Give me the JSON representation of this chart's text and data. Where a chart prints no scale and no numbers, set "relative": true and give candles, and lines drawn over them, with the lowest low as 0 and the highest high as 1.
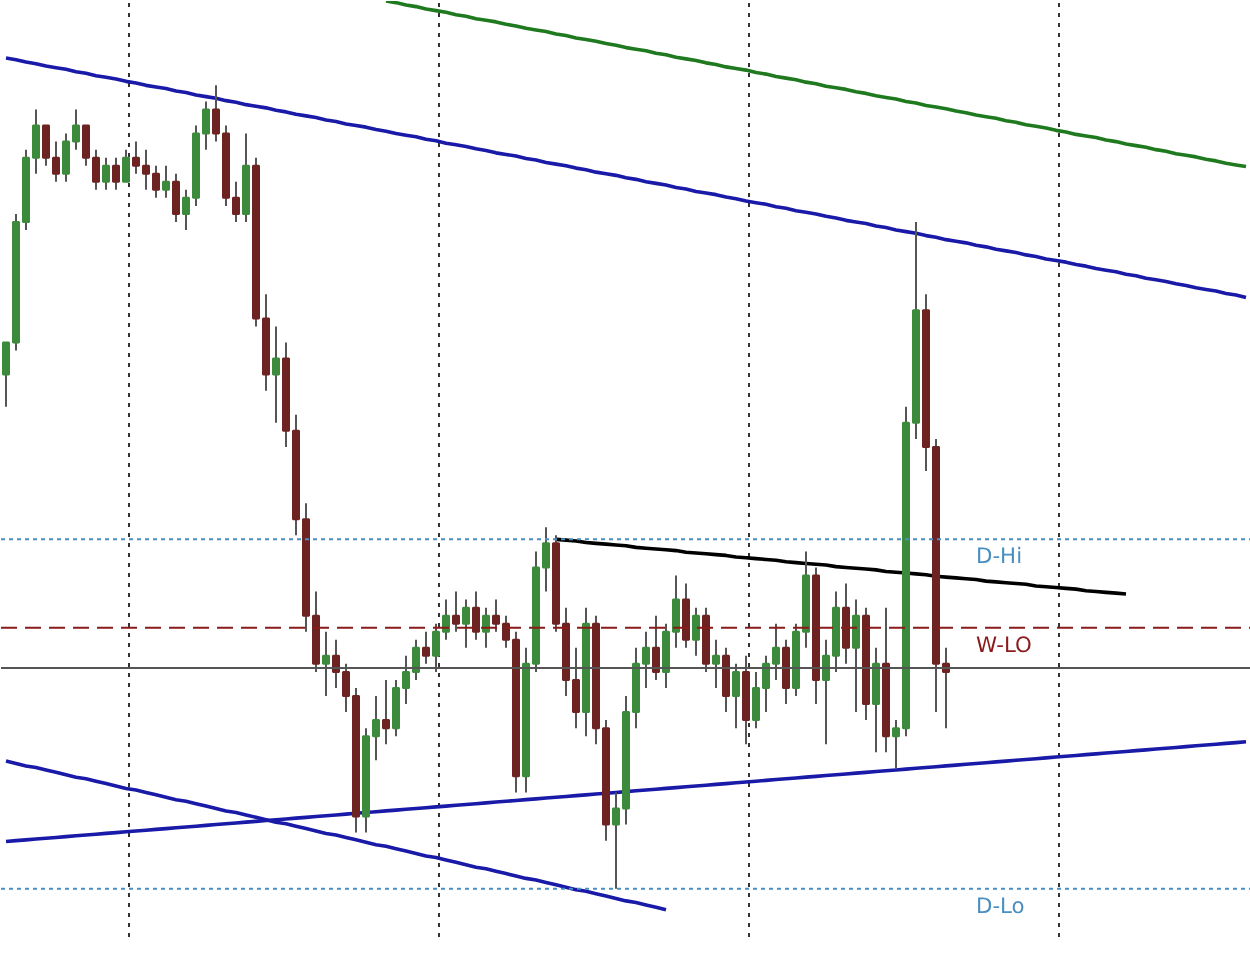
{
  "chart_data": {
    "type": "candlestick",
    "relative": true,
    "tick_labels": false,
    "grid": "x",
    "categories": [
      null,
      null,
      null,
      null,
      null,
      null,
      null,
      null,
      null,
      null,
      null,
      null,
      null,
      null,
      null,
      null,
      null,
      null,
      null,
      null,
      null,
      null,
      null,
      null,
      null,
      null,
      null,
      null,
      null,
      null,
      null,
      null,
      null,
      null,
      null,
      null,
      null,
      null,
      null,
      null,
      null,
      null,
      null,
      null,
      null,
      null,
      null,
      null,
      null,
      null,
      null,
      null,
      null,
      null,
      null,
      null,
      null,
      null,
      null,
      null,
      null,
      null,
      null,
      null,
      null,
      null,
      null,
      null,
      null,
      null,
      null,
      null,
      null,
      null,
      null,
      null,
      null,
      null,
      null,
      null,
      null,
      null,
      null,
      null,
      null,
      null,
      null,
      null,
      null,
      null,
      null,
      null,
      null,
      null,
      null,
      null,
      null,
      null,
      null,
      null,
      null,
      null,
      null,
      null,
      null,
      null,
      null,
      null,
      null,
      null,
      null,
      null,
      null,
      null,
      null,
      null,
      null,
      null,
      null,
      null,
      null,
      null,
      null,
      null,
      null
    ],
    "colors": [
      "#3c8a3c",
      "#3c8a3c",
      "#3c8a3c",
      "#3c8a3c",
      "#6e2323",
      "#6e2323",
      "#3c8a3c",
      "#3c8a3c",
      "#6e2323",
      "#6e2323",
      "#3c8a3c",
      "#6e2323",
      "#3c8a3c",
      "#6e2323",
      "#6e2323",
      "#6e2323",
      "#3c8a3c",
      "#6e2323",
      "#3c8a3c",
      "#3c8a3c",
      "#3c8a3c",
      "#6e2323",
      "#6e2323",
      "#6e2323",
      "#3c8a3c",
      "#6e2323",
      "#6e2323",
      "#3c8a3c",
      "#6e2323",
      "#6e2323",
      "#6e2323",
      "#6e2323",
      "#3c8a3c",
      "#6e2323",
      "#6e2323",
      "#6e2323",
      "#3c8a3c",
      "#3c8a3c",
      "#6e2323",
      "#3c8a3c",
      "#3c8a3c",
      "#3c8a3c",
      "#6e2323",
      "#3c8a3c",
      "#3c8a3c",
      "#6e2323",
      "#3c8a3c",
      "#6e2323",
      "#3c8a3c",
      "#6e2323",
      "#6e2323",
      "#6e2323",
      "#3c8a3c",
      "#3c8a3c",
      "#3c8a3c",
      "#6e2323",
      "#6e2323",
      "#6e2323",
      "#3c8a3c",
      "#6e2323",
      "#6e2323",
      "#3c8a3c",
      "#3c8a3c",
      "#3c8a3c",
      "#3c8a3c",
      "#6e2323",
      "#3c8a3c",
      "#3c8a3c",
      "#6e2323",
      "#3c8a3c",
      "#6e2323",
      "#3c8a3c",
      "#6e2323",
      "#3c8a3c",
      "#6e2323",
      "#3c8a3c",
      "#3c8a3c",
      "#3c8a3c",
      "#6e2323",
      "#3c8a3c",
      "#3c8a3c",
      "#6e2323",
      "#3c8a3c",
      "#3c8a3c",
      "#6e2323",
      "#3c8a3c",
      "#6e2323",
      "#3c8a3c",
      "#6e2323",
      "#3c8a3c",
      "#3c8a3c",
      "#3c8a3c",
      "#6e2323",
      "#6e2323",
      "#6e2323",
      null,
      null,
      null,
      null,
      null,
      null,
      null,
      null,
      null,
      null,
      null,
      null,
      null,
      null,
      null,
      null,
      null,
      null,
      null,
      null,
      null,
      null,
      null,
      null,
      null,
      null,
      null,
      null,
      null,
      null
    ],
    "ohlc": [
      [
        0.64,
        0.68,
        0.6,
        0.68
      ],
      [
        0.68,
        0.84,
        0.67,
        0.83
      ],
      [
        0.83,
        0.92,
        0.82,
        0.91
      ],
      [
        0.91,
        0.97,
        0.89,
        0.95
      ],
      [
        0.95,
        0.95,
        0.9,
        0.91
      ],
      [
        0.91,
        0.93,
        0.88,
        0.89
      ],
      [
        0.89,
        0.94,
        0.88,
        0.93
      ],
      [
        0.93,
        0.97,
        0.92,
        0.95
      ],
      [
        0.95,
        0.95,
        0.9,
        0.91
      ],
      [
        0.91,
        0.92,
        0.87,
        0.88
      ],
      [
        0.88,
        0.91,
        0.87,
        0.9
      ],
      [
        0.9,
        0.91,
        0.87,
        0.88
      ],
      [
        0.88,
        0.92,
        0.88,
        0.91
      ],
      [
        0.91,
        0.93,
        0.89,
        0.9
      ],
      [
        0.9,
        0.92,
        0.87,
        0.89
      ],
      [
        0.89,
        0.9,
        0.86,
        0.87
      ],
      [
        0.87,
        0.9,
        0.86,
        0.88
      ],
      [
        0.88,
        0.89,
        0.83,
        0.84
      ],
      [
        0.84,
        0.87,
        0.82,
        0.86
      ],
      [
        0.86,
        0.95,
        0.85,
        0.94
      ],
      [
        0.94,
        0.98,
        0.92,
        0.97
      ],
      [
        0.97,
        1.0,
        0.93,
        0.94
      ],
      [
        0.94,
        0.95,
        0.85,
        0.86
      ],
      [
        0.86,
        0.88,
        0.83,
        0.84
      ],
      [
        0.84,
        0.94,
        0.83,
        0.9
      ],
      [
        0.9,
        0.91,
        0.7,
        0.71
      ],
      [
        0.71,
        0.74,
        0.62,
        0.64
      ],
      [
        0.64,
        0.7,
        0.58,
        0.66
      ],
      [
        0.66,
        0.68,
        0.55,
        0.57
      ],
      [
        0.57,
        0.59,
        0.44,
        0.46
      ],
      [
        0.46,
        0.48,
        0.32,
        0.34
      ],
      [
        0.34,
        0.37,
        0.27,
        0.28
      ],
      [
        0.28,
        0.32,
        0.24,
        0.29
      ],
      [
        0.29,
        0.31,
        0.25,
        0.27
      ],
      [
        0.27,
        0.28,
        0.22,
        0.24
      ],
      [
        0.24,
        0.25,
        0.07,
        0.09
      ],
      [
        0.09,
        0.2,
        0.07,
        0.19
      ],
      [
        0.19,
        0.24,
        0.16,
        0.21
      ],
      [
        0.21,
        0.26,
        0.18,
        0.2
      ],
      [
        0.2,
        0.26,
        0.19,
        0.25
      ],
      [
        0.25,
        0.29,
        0.23,
        0.27
      ],
      [
        0.27,
        0.31,
        0.26,
        0.3
      ],
      [
        0.3,
        0.32,
        0.28,
        0.29
      ],
      [
        0.29,
        0.33,
        0.27,
        0.32
      ],
      [
        0.32,
        0.36,
        0.31,
        0.34
      ],
      [
        0.34,
        0.37,
        0.32,
        0.33
      ],
      [
        0.33,
        0.36,
        0.3,
        0.35
      ],
      [
        0.35,
        0.37,
        0.31,
        0.32
      ],
      [
        0.32,
        0.35,
        0.3,
        0.34
      ],
      [
        0.34,
        0.36,
        0.32,
        0.33
      ],
      [
        0.33,
        0.34,
        0.3,
        0.31
      ],
      [
        0.31,
        0.32,
        0.12,
        0.14
      ],
      [
        0.14,
        0.3,
        0.12,
        0.28
      ],
      [
        0.28,
        0.42,
        0.27,
        0.4
      ],
      [
        0.4,
        0.45,
        0.37,
        0.43
      ],
      [
        0.43,
        0.44,
        0.32,
        0.33
      ],
      [
        0.33,
        0.35,
        0.24,
        0.26
      ],
      [
        0.26,
        0.3,
        0.2,
        0.22
      ],
      [
        0.22,
        0.35,
        0.19,
        0.33
      ],
      [
        0.33,
        0.34,
        0.18,
        0.2
      ],
      [
        0.2,
        0.21,
        0.06,
        0.08
      ],
      [
        0.08,
        0.12,
        0.0,
        0.1
      ],
      [
        0.1,
        0.24,
        0.08,
        0.22
      ],
      [
        0.22,
        0.3,
        0.2,
        0.28
      ],
      [
        0.28,
        0.32,
        0.25,
        0.3
      ],
      [
        0.3,
        0.34,
        0.26,
        0.27
      ],
      [
        0.27,
        0.33,
        0.25,
        0.32
      ],
      [
        0.32,
        0.39,
        0.3,
        0.36
      ],
      [
        0.36,
        0.38,
        0.3,
        0.31
      ],
      [
        0.31,
        0.35,
        0.29,
        0.34
      ],
      [
        0.34,
        0.35,
        0.27,
        0.28
      ],
      [
        0.28,
        0.31,
        0.25,
        0.29
      ],
      [
        0.29,
        0.3,
        0.22,
        0.24
      ],
      [
        0.24,
        0.28,
        0.2,
        0.27
      ],
      [
        0.27,
        0.29,
        0.18,
        0.21
      ],
      [
        0.21,
        0.27,
        0.2,
        0.25
      ],
      [
        0.25,
        0.29,
        0.22,
        0.28
      ],
      [
        0.28,
        0.33,
        0.26,
        0.3
      ],
      [
        0.3,
        0.31,
        0.23,
        0.25
      ],
      [
        0.25,
        0.33,
        0.24,
        0.32
      ],
      [
        0.32,
        0.42,
        0.3,
        0.39
      ],
      [
        0.39,
        0.4,
        0.23,
        0.26
      ],
      [
        0.26,
        0.31,
        0.18,
        0.29
      ],
      [
        0.29,
        0.37,
        0.27,
        0.35
      ],
      [
        0.35,
        0.38,
        0.28,
        0.3
      ],
      [
        0.3,
        0.36,
        0.22,
        0.34
      ],
      [
        0.34,
        0.35,
        0.21,
        0.23
      ],
      [
        0.23,
        0.3,
        0.17,
        0.28
      ],
      [
        0.28,
        0.35,
        0.17,
        0.19
      ],
      [
        0.19,
        0.21,
        0.15,
        0.2
      ],
      [
        0.2,
        0.6,
        0.19,
        0.58
      ],
      [
        0.58,
        0.83,
        0.56,
        0.72
      ],
      [
        0.72,
        0.74,
        0.52,
        0.55
      ],
      [
        0.55,
        0.56,
        0.22,
        0.28
      ],
      [
        0.28,
        0.3,
        0.2,
        0.27
      ],
      null,
      null,
      null,
      null,
      null,
      null,
      null,
      null,
      null,
      null,
      null,
      null,
      null,
      null,
      null,
      null,
      null,
      null,
      null,
      null,
      null,
      null,
      null,
      null,
      null,
      null,
      null,
      null,
      null,
      null
    ],
    "series": [
      {
        "type": "line",
        "color": "#1a1aa8",
        "values": [
          1.034,
          1.032,
          1.029,
          1.027,
          1.024,
          1.022,
          1.02,
          1.017,
          1.015,
          1.012,
          1.01,
          1.008,
          1.005,
          1.003,
          1.0,
          0.998,
          0.996,
          0.993,
          0.991,
          0.988,
          0.986,
          0.984,
          0.981,
          0.979,
          0.976,
          0.974,
          0.972,
          0.969,
          0.967,
          0.964,
          0.962,
          0.96,
          0.957,
          0.955,
          0.952,
          0.95,
          0.948,
          0.945,
          0.943,
          0.94,
          0.938,
          0.936,
          0.933,
          0.931,
          0.928,
          0.926,
          0.924,
          0.921,
          0.919,
          0.916,
          0.914,
          0.912,
          0.909,
          0.907,
          0.904,
          0.902,
          0.9,
          0.897,
          0.895,
          0.892,
          0.89,
          0.888,
          0.885,
          0.883,
          0.88,
          0.878,
          0.876,
          0.873,
          0.871,
          0.868,
          0.866,
          0.864,
          0.861,
          0.859,
          0.856,
          0.854,
          0.852,
          0.849,
          0.847,
          0.844,
          0.842,
          0.84,
          0.837,
          0.835,
          0.832,
          0.83,
          0.828,
          0.825,
          0.823,
          0.82,
          0.818,
          0.816,
          0.813,
          0.811,
          0.808,
          0.806,
          0.804,
          0.801,
          0.799,
          0.796,
          0.794,
          0.792,
          0.789,
          0.787,
          0.784,
          0.782,
          0.78,
          0.777,
          0.775,
          0.772,
          0.77,
          0.768,
          0.765,
          0.763,
          0.76,
          0.758,
          0.756,
          0.753,
          0.751,
          0.748,
          0.746,
          0.744,
          0.741,
          0.739,
          0.736
        ]
      },
      {
        "type": "line",
        "color": "#1f7a1f",
        "values": [
          null,
          null,
          null,
          null,
          null,
          null,
          null,
          null,
          null,
          null,
          null,
          null,
          null,
          null,
          null,
          null,
          null,
          null,
          null,
          null,
          null,
          null,
          null,
          null,
          null,
          null,
          null,
          null,
          null,
          null,
          null,
          null,
          null,
          null,
          null,
          null,
          null,
          null,
          1.105,
          1.103,
          1.1,
          1.098,
          1.095,
          1.093,
          1.091,
          1.088,
          1.086,
          1.083,
          1.081,
          1.079,
          1.076,
          1.074,
          1.071,
          1.069,
          1.067,
          1.064,
          1.062,
          1.059,
          1.057,
          1.055,
          1.052,
          1.05,
          1.047,
          1.045,
          1.043,
          1.04,
          1.038,
          1.035,
          1.033,
          1.031,
          1.028,
          1.026,
          1.023,
          1.021,
          1.019,
          1.016,
          1.014,
          1.011,
          1.009,
          1.007,
          1.004,
          1.002,
          0.999,
          0.997,
          0.995,
          0.992,
          0.99,
          0.987,
          0.985,
          0.983,
          0.98,
          0.978,
          0.975,
          0.973,
          0.971,
          0.968,
          0.966,
          0.963,
          0.961,
          0.959,
          0.956,
          0.954,
          0.951,
          0.949,
          0.947,
          0.944,
          0.942,
          0.939,
          0.937,
          0.935,
          0.932,
          0.93,
          0.927,
          0.925,
          0.923,
          0.92,
          0.918,
          0.915,
          0.913,
          0.911,
          0.908,
          0.906,
          0.903,
          0.901,
          0.899
        ]
      },
      {
        "type": "line",
        "color": "#000000",
        "values": [
          null,
          null,
          null,
          null,
          null,
          null,
          null,
          null,
          null,
          null,
          null,
          null,
          null,
          null,
          null,
          null,
          null,
          null,
          null,
          null,
          null,
          null,
          null,
          null,
          null,
          null,
          null,
          null,
          null,
          null,
          null,
          null,
          null,
          null,
          null,
          null,
          null,
          null,
          null,
          null,
          null,
          null,
          null,
          null,
          null,
          null,
          null,
          null,
          null,
          null,
          null,
          null,
          null,
          null,
          null,
          0.435,
          0.434,
          0.433,
          0.431,
          0.43,
          0.429,
          0.428,
          0.427,
          0.425,
          0.424,
          0.423,
          0.422,
          0.421,
          0.419,
          0.418,
          0.417,
          0.416,
          0.415,
          0.413,
          0.412,
          0.411,
          0.41,
          0.409,
          0.407,
          0.406,
          0.405,
          0.404,
          0.403,
          0.401,
          0.4,
          0.399,
          0.398,
          0.397,
          0.395,
          0.394,
          0.393,
          0.392,
          0.391,
          0.389,
          0.388,
          0.387,
          0.386,
          0.385,
          0.383,
          0.382,
          0.381,
          0.38,
          0.379,
          0.377,
          0.376,
          0.375,
          0.374,
          0.373,
          0.371,
          0.37,
          0.369,
          0.368,
          0.367,
          null,
          null,
          null,
          null,
          null,
          null,
          null,
          null,
          null,
          null,
          null,
          null
        ]
      },
      {
        "type": "line",
        "color": "#1a1aa8",
        "values": [
          0.059,
          0.06,
          0.061,
          0.062,
          0.063,
          0.064,
          0.065,
          0.066,
          0.067,
          0.068,
          0.069,
          0.07,
          0.071,
          0.072,
          0.073,
          0.074,
          0.075,
          0.076,
          0.077,
          0.078,
          0.079,
          0.08,
          0.081,
          0.082,
          0.083,
          0.084,
          0.085,
          0.086,
          0.087,
          0.088,
          0.089,
          0.09,
          0.091,
          0.092,
          0.093,
          0.094,
          0.095,
          0.096,
          0.097,
          0.098,
          0.099,
          0.1,
          0.101,
          0.102,
          0.103,
          0.104,
          0.105,
          0.106,
          0.107,
          0.108,
          0.109,
          0.11,
          0.111,
          0.112,
          0.113,
          0.114,
          0.115,
          0.116,
          0.117,
          0.118,
          0.119,
          0.12,
          0.121,
          0.122,
          0.123,
          0.124,
          0.125,
          0.126,
          0.127,
          0.128,
          0.129,
          0.13,
          0.131,
          0.132,
          0.133,
          0.134,
          0.135,
          0.136,
          0.137,
          0.138,
          0.139,
          0.14,
          0.141,
          0.142,
          0.143,
          0.144,
          0.145,
          0.146,
          0.147,
          0.148,
          0.149,
          0.15,
          0.151,
          0.152,
          0.153,
          0.154,
          0.155,
          0.156,
          0.157,
          0.158,
          0.159,
          0.16,
          0.161,
          0.162,
          0.163,
          0.164,
          0.165,
          0.166,
          0.167,
          0.168,
          0.169,
          0.17,
          0.171,
          0.172,
          0.173,
          0.174,
          0.175,
          0.176,
          0.177,
          0.178,
          0.179,
          0.18,
          0.181,
          0.182,
          0.183
        ]
      },
      {
        "type": "line",
        "color": "#1a1aa8",
        "values": [
          0.159,
          0.156,
          0.153,
          0.151,
          0.148,
          0.145,
          0.142,
          0.139,
          0.137,
          0.134,
          0.131,
          0.128,
          0.125,
          0.123,
          0.12,
          0.117,
          0.114,
          0.111,
          0.109,
          0.106,
          0.103,
          0.1,
          0.097,
          0.095,
          0.092,
          0.089,
          0.086,
          0.083,
          0.081,
          0.078,
          0.075,
          0.072,
          0.069,
          0.067,
          0.064,
          0.061,
          0.058,
          0.055,
          0.053,
          0.05,
          0.047,
          0.044,
          0.041,
          0.039,
          0.036,
          0.033,
          0.03,
          0.027,
          0.025,
          0.022,
          0.019,
          0.016,
          0.013,
          0.011,
          0.008,
          0.005,
          0.002,
          -0.001,
          -0.003,
          -0.006,
          -0.009,
          -0.012,
          -0.015,
          -0.017,
          -0.02,
          -0.023,
          -0.026,
          null,
          null,
          null,
          null,
          null,
          null,
          null,
          null,
          null,
          null,
          null,
          null,
          null,
          null,
          null,
          null,
          null,
          null,
          null,
          null,
          null,
          null,
          null,
          null,
          null,
          null,
          null,
          null,
          null,
          null,
          null,
          null,
          null,
          null,
          null,
          null,
          null,
          null,
          null,
          null,
          null,
          null,
          null,
          null,
          null,
          null,
          null,
          null,
          null,
          null,
          null,
          null,
          null,
          null,
          null,
          null,
          null,
          null
        ]
      }
    ],
    "ref_lines": [
      {
        "axis": "y",
        "value": 0.435,
        "label": "D-Hi",
        "color": "#4a8fc0",
        "line_style": "dotted"
      },
      {
        "axis": "y",
        "value": 0.325,
        "label": "W-LO",
        "color": "#8b1a1a",
        "line_style": "dashed"
      },
      {
        "axis": "y",
        "value": 0.275,
        "label": null,
        "color": "#555555",
        "line_style": "solid"
      },
      {
        "axis": "y",
        "value": 0.0,
        "label": "D-Lo",
        "color": "#4a8fc0",
        "line_style": "dotted"
      }
    ]
  }
}
